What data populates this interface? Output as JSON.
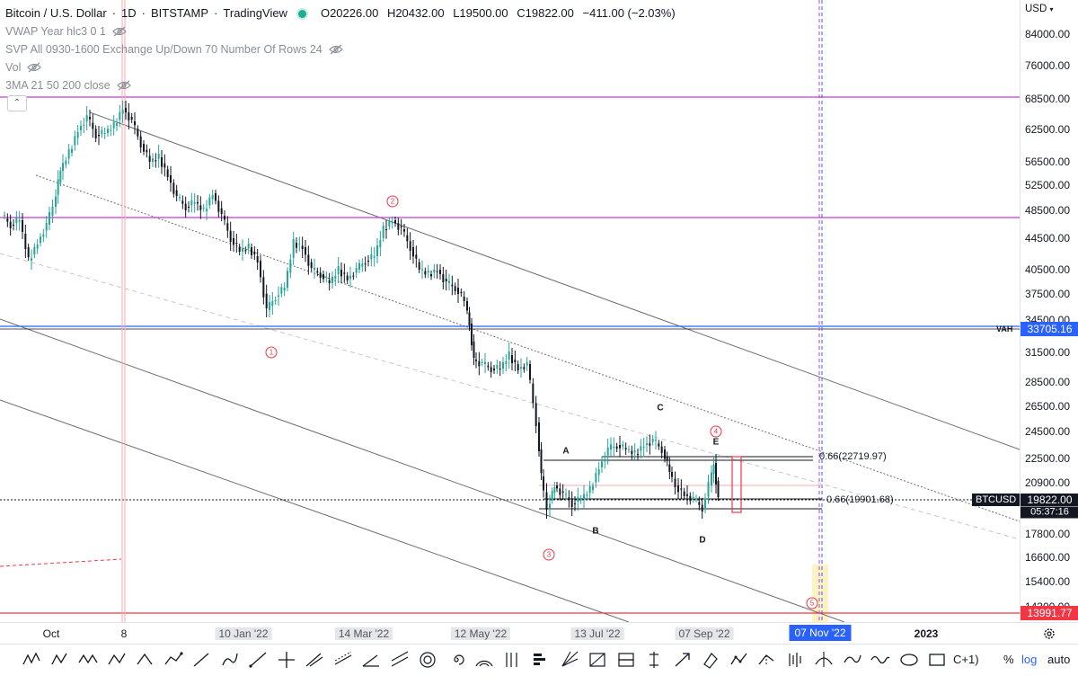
{
  "legend": {
    "symbol": "Bitcoin / U.S. Dollar",
    "interval": "1D",
    "exchange": "BITSTAMP",
    "source": "TradingView",
    "ohlc": {
      "o_label": "O",
      "o": "20226.00",
      "h_label": "H",
      "h": "20432.00",
      "l_label": "L",
      "l": "19500.00",
      "c_label": "C",
      "c": "19822.00",
      "change": "−411.00 (−2.03%)"
    },
    "indicators": [
      "VWAP Year hlc3 0 1",
      "SVP All 0930-1600 Exchange Up/Down 70 Number Of Rows 24",
      "Vol",
      "3MA 21 50 200 close"
    ],
    "collapse_glyph": "⌃"
  },
  "price_axis": {
    "currency": "USD",
    "ticks": [
      "84000.00",
      "76000.00",
      "68500.00",
      "62500.00",
      "56500.00",
      "52500.00",
      "48500.00",
      "44500.00",
      "40500.00",
      "37500.00",
      "34500.00",
      "31500.00",
      "28500.00",
      "26500.00",
      "24500.00",
      "22500.00",
      "20900.00",
      "17800.00",
      "16600.00",
      "15400.00",
      "14300.00"
    ],
    "vah_label": "VAH",
    "vah_price": "33705.16",
    "symbol_badge": "BTCUSD",
    "last_price": "19822.00",
    "countdown": "05:37:16",
    "low_line_price": "13991.77"
  },
  "time_axis": {
    "labels": [
      {
        "text": "Oct",
        "style": ""
      },
      {
        "text": "8",
        "style": ""
      },
      {
        "text": "10 Jan '22",
        "style": "hl"
      },
      {
        "text": "14 Mar '22",
        "style": "hl"
      },
      {
        "text": "12 May '22",
        "style": "hl"
      },
      {
        "text": "13 Jul '22",
        "style": "hl"
      },
      {
        "text": "07 Sep '22",
        "style": "hl"
      },
      {
        "text": "07 Nov '22",
        "style": "active"
      },
      {
        "text": "2023",
        "style": "bold"
      }
    ]
  },
  "annotations": {
    "wave_labels": [
      "1",
      "2",
      "3",
      "4",
      "5"
    ],
    "letters": [
      "A",
      "B",
      "C",
      "D",
      "E"
    ],
    "fib_upper": "0.66(22719.97)",
    "fib_lower": "0.66(19901.68)"
  },
  "toolbar": {
    "tools": [
      "xabcd-pattern",
      "wxy-pattern",
      "wxyz-pattern",
      "abcd-pattern",
      "abc-pattern",
      "path",
      "trend-line",
      "brush",
      "ray",
      "cross-lines",
      "pitchfork",
      "regression",
      "trend-angle",
      "fib-channel",
      "fib-circle",
      "fib-spiral",
      "fib-arc",
      "fib-timezone",
      "volume-profile",
      "gann-fan",
      "gann-box",
      "long-position",
      "price-range",
      "arrow-marker",
      "eraser",
      "polyline",
      "projection",
      "bars-pattern",
      "anchored-vwap",
      "curve",
      "double-curve",
      "ellipse",
      "rectangle"
    ],
    "cut_label": "C+1)",
    "percent_label": "%",
    "log_label": "log",
    "auto_label": "auto"
  },
  "colors": {
    "up": "#26a69a",
    "down": "#000000",
    "magenta_line": "#c63ad6",
    "blue_line": "#2962ff",
    "red": "#f23645"
  }
}
